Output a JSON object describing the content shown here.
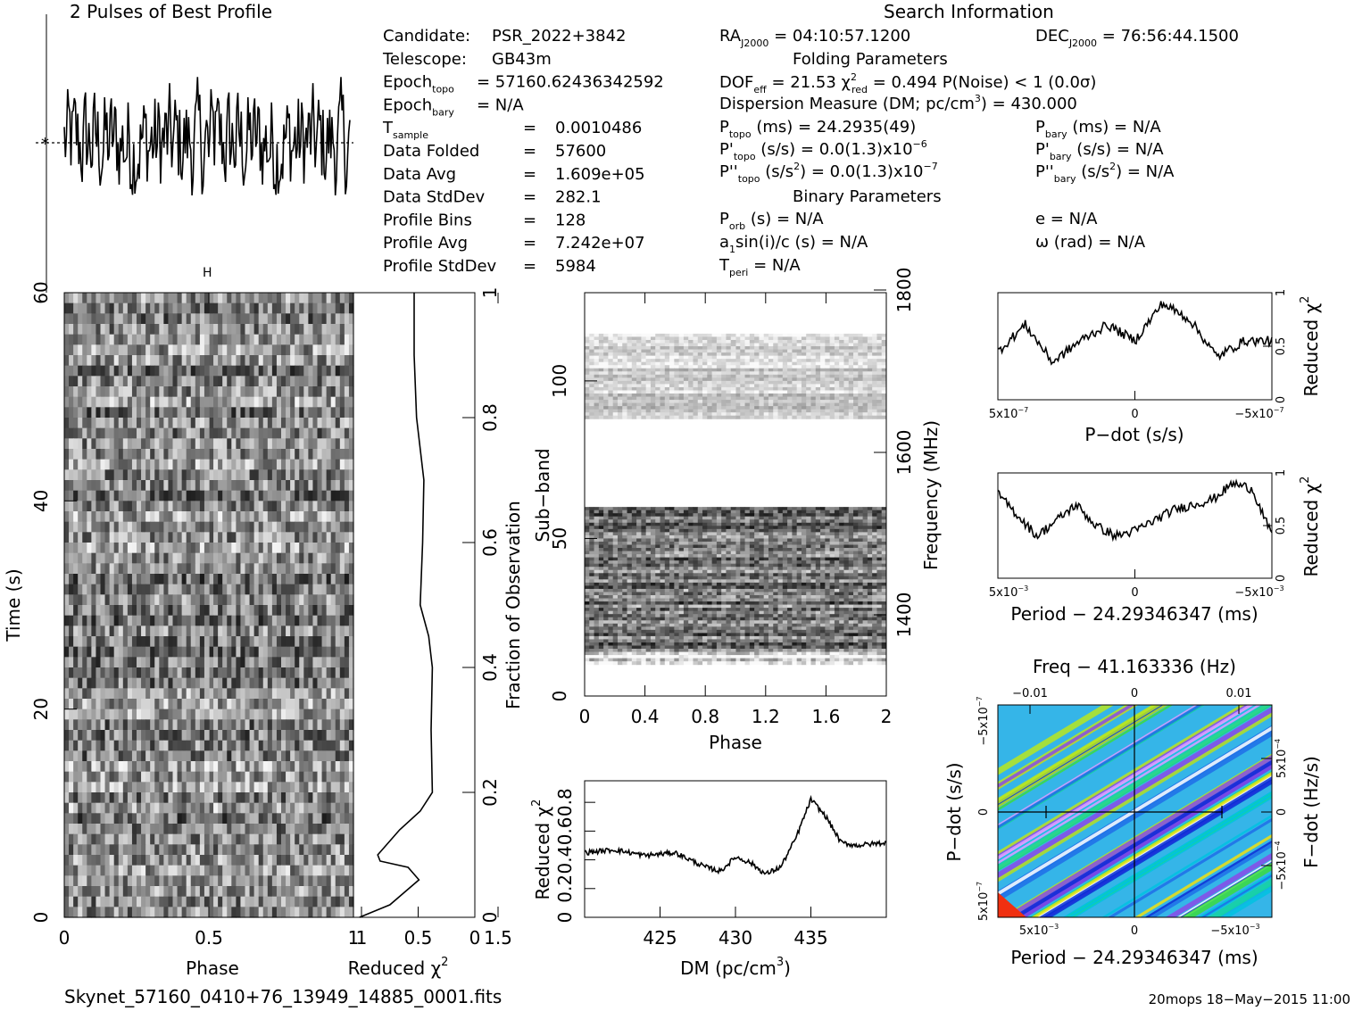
{
  "header": {
    "profile_title": "2 Pulses of Best Profile",
    "search_title": "Search Information",
    "folding_title": "Folding Parameters",
    "binary_title": "Binary Parameters",
    "profile_marker": "H"
  },
  "info_left": [
    {
      "label": "Candidate:",
      "value": "PSR_2022+3842",
      "sub": ""
    },
    {
      "label": "Telescope:",
      "value": "GB43m",
      "sub": ""
    },
    {
      "label": "Epoch",
      "sub": "topo",
      "value": "= 57160.62436342592"
    },
    {
      "label": "Epoch",
      "sub": "bary",
      "value": "= N/A"
    },
    {
      "label": "T",
      "sub": "sample",
      "value": "=    0.0010486"
    },
    {
      "label": "Data Folded",
      "sub": "",
      "value": "=    57600"
    },
    {
      "label": "Data Avg",
      "sub": "",
      "value": "=    1.609e+05"
    },
    {
      "label": "Data StdDev",
      "sub": "",
      "value": "=    282.1"
    },
    {
      "label": "Profile Bins",
      "sub": "",
      "value": "=    128"
    },
    {
      "label": "Profile Avg",
      "sub": "",
      "value": "=    7.242e+07"
    },
    {
      "label": "Profile StdDev",
      "sub": "",
      "value": "=    5984"
    }
  ],
  "info_mid": {
    "ra": "RA",
    "ra_sub": "J2000",
    "ra_val": " = 04:10:57.1200",
    "dof": "DOF",
    "dof_sub": "eff",
    "dof_val": " = 21.53  ",
    "chi": "χ",
    "chi_sup": "2",
    "chi_sub": "red",
    "chi_val": " = 0.494  P(Noise) < 1  (0.0σ)",
    "dm_line": "Dispersion Measure (DM; pc/cm",
    "dm_sup": "3",
    "dm_val": ") = 430.000",
    "p": "P",
    "p_sub": "topo",
    "p_val": " (ms) =  24.2935(49)",
    "pd": "P'",
    "pd_sub": "topo",
    "pd_val": " (s/s) = 0.0(1.3)x10",
    "pd_exp": "−6",
    "pdd": "P''",
    "pdd_sub": "topo",
    "pdd_val": " (s/s",
    "pdd_sup": "2",
    "pdd_val2": ") = 0.0(1.3)x10",
    "pdd_exp": "−7",
    "porb": "P",
    "porb_sub": "orb",
    "porb_val": " (s) = N/A",
    "asini": "a",
    "asini_sub": "1",
    "asini_val": "sin(i)/c (s) = N/A",
    "tperi": "T",
    "tperi_sub": "peri",
    "tperi_val": " = N/A"
  },
  "info_right": {
    "dec": "DEC",
    "dec_sub": "J2000",
    "dec_val": " = 76:56:44.1500",
    "pb": "P",
    "pb_sub": "bary",
    "pb_val": " (ms) = N/A",
    "pbd": "P'",
    "pbd_sub": "bary",
    "pbd_val": " (s/s) = N/A",
    "pbdd": "P''",
    "pbdd_sub": "bary",
    "pbdd_val": " (s/s",
    "pbdd_sup": "2",
    "pbdd_val2": ") = N/A",
    "ecc": "e = N/A",
    "omega": "ω (rad) = N/A"
  },
  "axes": {
    "time_phase": {
      "xlabel": "Phase",
      "ylabel": "Time (s)",
      "xticks": [
        "0",
        "0.5",
        "1",
        "1.5"
      ],
      "yticks": [
        "0",
        "20",
        "40",
        "60"
      ]
    },
    "time_chi": {
      "xlabel": "Reduced χ",
      "xlabel_sup": "2",
      "ylabel": "Fraction of Observation",
      "xticks": [
        "1",
        "0.5",
        "0"
      ],
      "yticks": [
        "0",
        "0.2",
        "0.4",
        "0.6",
        "0.8",
        "1"
      ]
    },
    "subband": {
      "xlabel": "Phase",
      "ylabel": "Sub−band",
      "ylabel_right": "Frequency (MHz)",
      "xticks": [
        "0",
        "0.4",
        "0.8",
        "1.2",
        "1.6",
        "2"
      ],
      "yticks": [
        "0",
        "50",
        "100"
      ],
      "yticks_right": [
        "1400",
        "1600",
        "1800"
      ]
    },
    "dm": {
      "xlabel": "DM (pc/cm",
      "xlabel_sup": "3",
      "xlabel_end": ")",
      "ylabel": "Reduced χ",
      "ylabel_sup": "2",
      "xticks": [
        "425",
        "430",
        "435"
      ],
      "yticks": [
        "0",
        "0.2",
        "0.4",
        "0.6",
        "0.8"
      ]
    },
    "pdot": {
      "xlabel": "P−dot (s/s)",
      "ylabel": "Reduced χ",
      "ylabel_sup": "2",
      "xticks": [
        "5x10",
        "0",
        "−5x10"
      ],
      "xticks_exp": [
        "−7",
        "",
        "−7"
      ],
      "yticks": [
        "0",
        "0.5",
        "1"
      ]
    },
    "period": {
      "xlabel": "Period − 24.29346347 (ms)",
      "ylabel": "Reduced χ",
      "ylabel_sup": "2",
      "xticks": [
        "5x10",
        "0",
        "−5x10"
      ],
      "xticks_exp": [
        "−3",
        "",
        "−3"
      ],
      "yticks": [
        "0",
        "0.5",
        "1"
      ]
    },
    "pp": {
      "title": "Freq − 41.163336 (Hz)",
      "xlabel": "Period − 24.29346347 (ms)",
      "ylabel": "P−dot (s/s)",
      "ylabel_right": "F−dot (Hz/s)",
      "xticks": [
        "5x10",
        "0",
        "−5x10"
      ],
      "xticks_exp": [
        "−3",
        "",
        "−3"
      ],
      "top_ticks": [
        "−0.01",
        "0",
        "0.01"
      ],
      "yticks": [
        "5x10",
        "0",
        "−5x10"
      ],
      "yticks_exp": [
        "−7",
        "",
        "−7"
      ],
      "right_ticks": [
        "−5x10",
        "0",
        "5x10"
      ],
      "right_ticks_exp": [
        "−4",
        "",
        "−4"
      ]
    }
  },
  "footer": {
    "filename": "Skynet_57160_0410+76_13949_14885_0001.fits",
    "stamp": "20mops 18−May−2015 11:00"
  },
  "chart_data": [
    {
      "type": "line",
      "title": "2 Pulses of Best Profile",
      "xlabel": "",
      "ylabel": "",
      "description_values": "folded pulse profile, 2 periods, 128 bins each"
    },
    {
      "type": "heatmap",
      "xlabel": "Phase",
      "ylabel": "Time (s)",
      "xlim": [
        0,
        2
      ],
      "ylim": [
        0,
        60
      ]
    },
    {
      "type": "line",
      "xlabel": "Reduced χ2",
      "ylabel": "Fraction of Observation",
      "xlim": [
        1,
        0
      ],
      "ylim": [
        0,
        1
      ],
      "x": [
        0.95,
        0.7,
        0.58,
        0.46,
        0.55,
        0.78,
        0.8,
        0.62,
        0.45,
        0.35,
        0.36,
        0.35,
        0.38,
        0.45,
        0.43,
        0.42,
        0.45,
        0.48,
        0.5,
        0.5,
        0.5
      ],
      "y": [
        0,
        0.02,
        0.04,
        0.06,
        0.08,
        0.09,
        0.1,
        0.14,
        0.17,
        0.2,
        0.3,
        0.4,
        0.45,
        0.5,
        0.6,
        0.7,
        0.75,
        0.8,
        0.9,
        0.95,
        1
      ]
    },
    {
      "type": "heatmap",
      "xlabel": "Phase",
      "ylabel": "Sub-band",
      "xlim": [
        0,
        2
      ],
      "ylim": [
        0,
        128
      ]
    },
    {
      "type": "line",
      "xlabel": "DM (pc/cm3)",
      "ylabel": "Reduced χ2",
      "ylim": [
        0,
        0.95
      ],
      "x": [
        420,
        422,
        424,
        426,
        428,
        429,
        430,
        431,
        432,
        433,
        434,
        435,
        436,
        437,
        438,
        440
      ],
      "y": [
        0.45,
        0.47,
        0.43,
        0.45,
        0.35,
        0.32,
        0.42,
        0.38,
        0.3,
        0.35,
        0.55,
        0.82,
        0.7,
        0.52,
        0.5,
        0.52
      ]
    },
    {
      "type": "line",
      "xlabel": "P−dot (s/s)",
      "ylabel": "Reduced χ2",
      "ylim": [
        0,
        1
      ],
      "x": [
        5e-07,
        4e-07,
        3e-07,
        2e-07,
        1e-07,
        0,
        -1e-07,
        -2e-07,
        -3e-07,
        -4e-07,
        -5e-07
      ],
      "y": [
        0.45,
        0.7,
        0.35,
        0.55,
        0.7,
        0.55,
        0.9,
        0.75,
        0.4,
        0.55,
        0.55
      ]
    },
    {
      "type": "line",
      "xlabel": "Period − 24.29346347 (ms)",
      "ylabel": "Reduced χ2",
      "ylim": [
        0,
        1
      ],
      "x": [
        0.007,
        0.006,
        0.005,
        0.004,
        0.003,
        0.002,
        0.001,
        0,
        -0.001,
        -0.002,
        -0.003,
        -0.004,
        -0.005,
        -0.006,
        -0.007
      ],
      "y": [
        0.8,
        0.6,
        0.4,
        0.55,
        0.7,
        0.5,
        0.4,
        0.45,
        0.55,
        0.65,
        0.7,
        0.75,
        0.9,
        0.85,
        0.4
      ]
    },
    {
      "type": "heatmap",
      "title": "Freq − 41.163336 (Hz)",
      "xlabel": "Period − 24.29346347 (ms)",
      "ylabel": "P−dot (s/s)"
    }
  ]
}
